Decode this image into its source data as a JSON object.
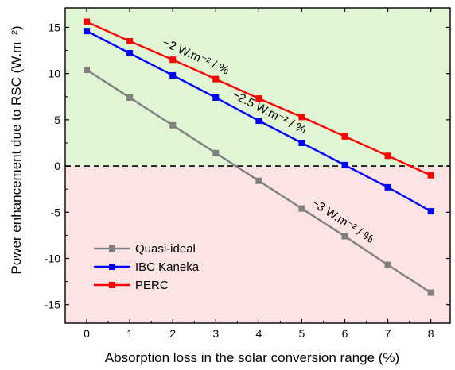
{
  "chart_data": {
    "type": "line",
    "xlabel": "Absorption loss in the solar conversion range (%)",
    "ylabel": "Power enhancement due to RSC (W.m⁻²)",
    "xlim": [
      -0.5,
      8.45
    ],
    "ylim": [
      -17,
      17.1
    ],
    "xticks": [
      0,
      1,
      2,
      3,
      4,
      5,
      6,
      7,
      8
    ],
    "yticks": [
      -15,
      -10,
      -5,
      0,
      5,
      10,
      15
    ],
    "ytick_labels": [
      "-15",
      "-10",
      "-5",
      "0",
      "5",
      "10",
      "15"
    ],
    "grid": false,
    "legend_position": "bottom-left",
    "regions": [
      {
        "name": "positive",
        "from": 0,
        "to": 17.1,
        "color": "#dff5d3"
      },
      {
        "name": "negative",
        "from": -17,
        "to": 0,
        "color": "#fde4e4"
      }
    ],
    "zero_line": {
      "value": 0,
      "style": "dashed",
      "color": "#000000"
    },
    "x": [
      0,
      1,
      2,
      3,
      4,
      5,
      6,
      7,
      8
    ],
    "series": [
      {
        "name": "Quasi-ideal",
        "color": "#808080",
        "values": [
          10.4,
          7.4,
          4.4,
          1.4,
          -1.6,
          -4.6,
          -7.6,
          -10.7,
          -13.7
        ]
      },
      {
        "name": "IBC Kaneka",
        "color": "#0000ff",
        "values": [
          14.6,
          12.2,
          9.8,
          7.4,
          4.9,
          2.5,
          0.1,
          -2.3,
          -4.9
        ]
      },
      {
        "name": "PERC",
        "color": "#ff0000",
        "values": [
          15.6,
          13.5,
          11.5,
          9.4,
          7.3,
          5.3,
          3.2,
          1.1,
          -1.0
        ]
      }
    ],
    "annotations": [
      {
        "text": "−2 W.m⁻² / %",
        "series": "PERC",
        "color": "#ff0000"
      },
      {
        "text": "−2.5 W.m⁻² / %",
        "series": "IBC Kaneka",
        "color": "#0000ff"
      },
      {
        "text": "−3 W.m⁻² / %",
        "series": "Quasi-ideal",
        "color": "#808080"
      }
    ]
  }
}
